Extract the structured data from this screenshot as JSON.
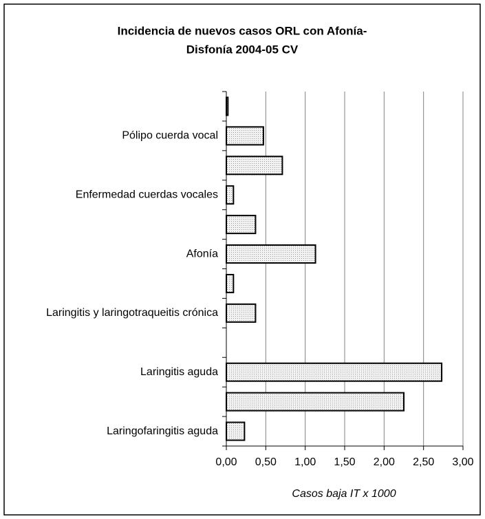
{
  "chart_data": {
    "type": "barh",
    "title": [
      "Incidencia de nuevos casos ORL con Afonía-",
      "Disfonía 2004-05 CV"
    ],
    "x_label": "Casos baja IT x 1000",
    "categories": [
      null,
      "Pólipo cuerda vocal",
      null,
      "Enfermedad cuerdas vocales",
      null,
      "Afonía",
      null,
      "Laringitis y laringotraqueitis crónica",
      null,
      "Laringitis aguda",
      null,
      "Laringofaringitis aguda"
    ],
    "values": [
      0.02,
      0.47,
      0.71,
      0.09,
      0.37,
      1.13,
      0.09,
      0.37,
      0,
      2.73,
      2.25,
      0.23
    ],
    "color": "#dcdcdc",
    "xlim": [
      0,
      3
    ],
    "xticks": [
      {
        "value": 0,
        "label": "0,00"
      },
      {
        "value": 0.5,
        "label": "0,50"
      },
      {
        "value": 1,
        "label": "1,00"
      },
      {
        "value": 1.5,
        "label": "1,50"
      },
      {
        "value": 2,
        "label": "2,00"
      },
      {
        "value": 2.5,
        "label": "2,50"
      },
      {
        "value": 3,
        "label": "3,00"
      }
    ],
    "grid": true
  }
}
